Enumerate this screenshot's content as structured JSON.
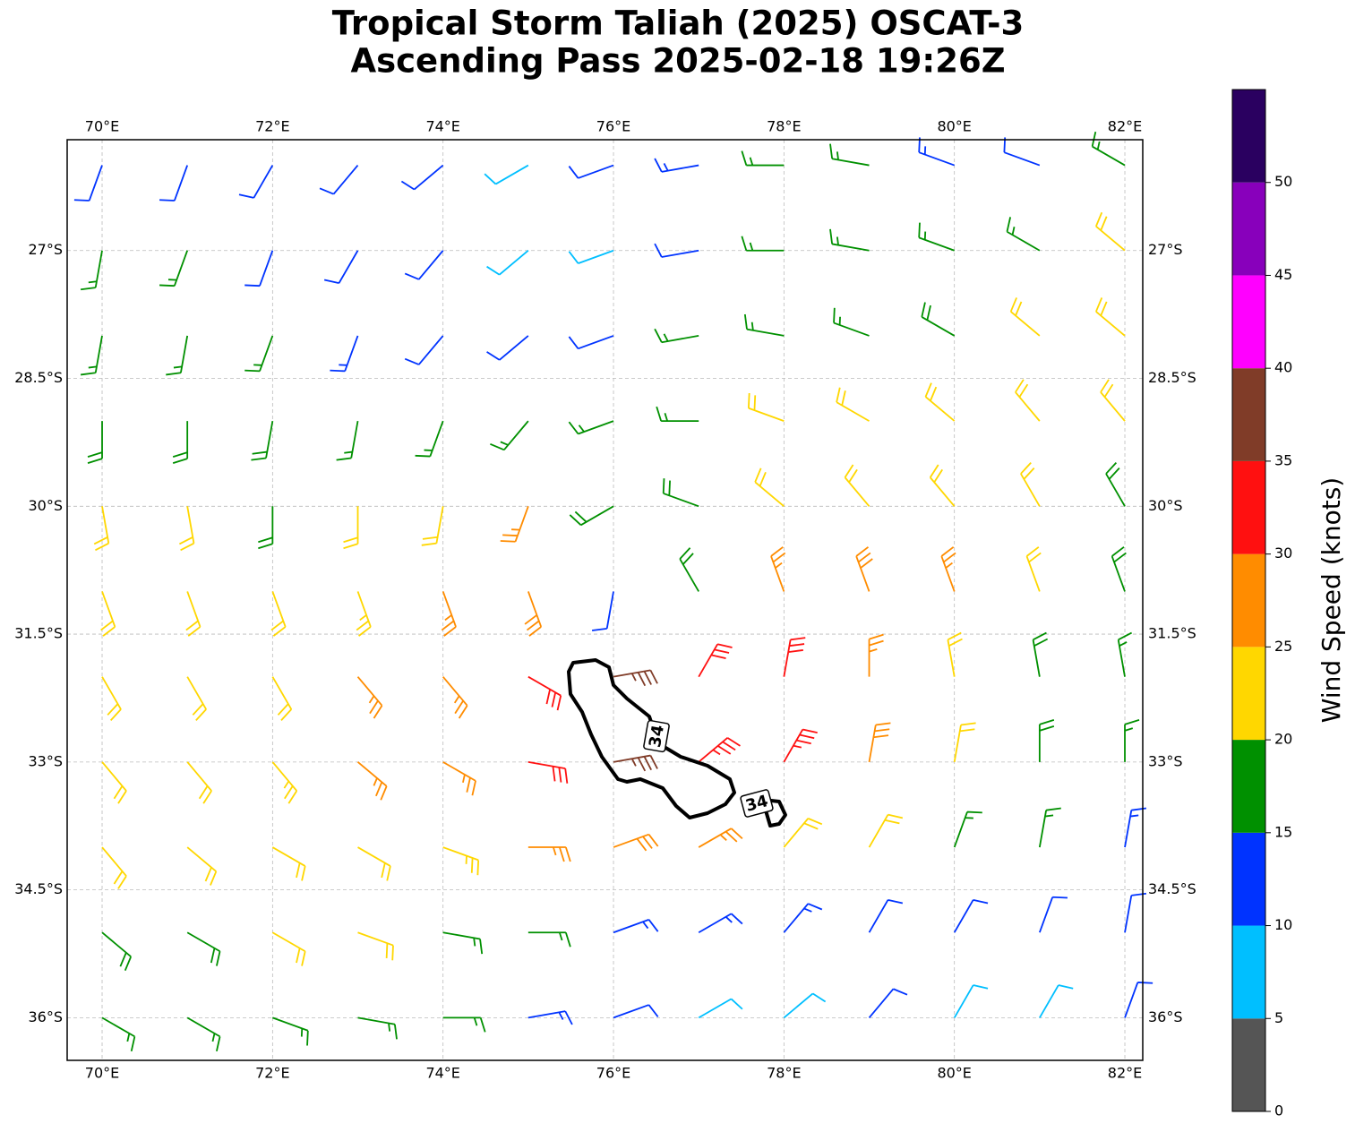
{
  "chart_data": {
    "type": "barbs",
    "title": [
      "Tropical Storm Taliah (2025) OSCAT-3",
      "Ascending Pass 2025-02-18 19:26Z"
    ],
    "xlim": [
      69.59,
      82.21
    ],
    "ylim": [
      -36.5,
      -25.7
    ],
    "xticks": [
      {
        "value": 70,
        "label": "70°E"
      },
      {
        "value": 72,
        "label": "72°E"
      },
      {
        "value": 74,
        "label": "74°E"
      },
      {
        "value": 76,
        "label": "76°E"
      },
      {
        "value": 78,
        "label": "78°E"
      },
      {
        "value": 80,
        "label": "80°E"
      },
      {
        "value": 82,
        "label": "82°E"
      }
    ],
    "yticks": [
      {
        "value": -27,
        "label": "27°S"
      },
      {
        "value": -28.5,
        "label": "28.5°S"
      },
      {
        "value": -30,
        "label": "30°S"
      },
      {
        "value": -31.5,
        "label": "31.5°S"
      },
      {
        "value": -33,
        "label": "33°S"
      },
      {
        "value": -34.5,
        "label": "34.5°S"
      },
      {
        "value": -36,
        "label": "36°S"
      }
    ],
    "grid": true,
    "lons": [
      70,
      71,
      72,
      73,
      74,
      75,
      76,
      77,
      78,
      79,
      80,
      81,
      82
    ],
    "lats": [
      -26,
      -27,
      -28,
      -29,
      -30,
      -31,
      -32,
      -33,
      -34,
      -35,
      -36
    ],
    "speed": [
      [
        12,
        12,
        12,
        10,
        10,
        8,
        10,
        13,
        15,
        15,
        13,
        12,
        17
      ],
      [
        17,
        15,
        12,
        12,
        10,
        8,
        8,
        12,
        15,
        17,
        17,
        15,
        20
      ],
      [
        17,
        17,
        17,
        13,
        12,
        10,
        12,
        15,
        17,
        17,
        18,
        20,
        20
      ],
      [
        18,
        18,
        18,
        17,
        15,
        17,
        17,
        17,
        20,
        20,
        21,
        21,
        22
      ],
      [
        22,
        20,
        18,
        20,
        22,
        25,
        18,
        18,
        22,
        22,
        22,
        20,
        18
      ],
      [
        22,
        22,
        22,
        23,
        25,
        28,
        12,
        18,
        25,
        28,
        25,
        22,
        18
      ],
      [
        22,
        22,
        22,
        25,
        26,
        32,
        36,
        32,
        30,
        27,
        22,
        18,
        17
      ],
      [
        22,
        22,
        24,
        26,
        27,
        30,
        36,
        34,
        33,
        28,
        22,
        18,
        15
      ],
      [
        20,
        22,
        22,
        22,
        23,
        25,
        28,
        26,
        22,
        20,
        17,
        15,
        13
      ],
      [
        18,
        18,
        20,
        20,
        17,
        15,
        13,
        13,
        13,
        12,
        12,
        12,
        12
      ],
      [
        17,
        17,
        17,
        17,
        15,
        13,
        10,
        8,
        8,
        10,
        8,
        8,
        10
      ]
    ],
    "direction": [
      [
        200,
        200,
        210,
        220,
        230,
        240,
        250,
        260,
        270,
        280,
        290,
        290,
        300
      ],
      [
        190,
        200,
        200,
        210,
        220,
        230,
        250,
        260,
        270,
        280,
        290,
        300,
        310
      ],
      [
        190,
        190,
        200,
        200,
        220,
        230,
        250,
        260,
        280,
        290,
        300,
        310,
        310
      ],
      [
        180,
        180,
        190,
        190,
        200,
        220,
        250,
        270,
        290,
        300,
        310,
        320,
        320
      ],
      [
        170,
        170,
        180,
        180,
        190,
        200,
        240,
        290,
        310,
        320,
        320,
        330,
        330
      ],
      [
        160,
        160,
        160,
        160,
        160,
        160,
        190,
        330,
        340,
        340,
        340,
        340,
        340
      ],
      [
        150,
        150,
        150,
        140,
        140,
        120,
        80,
        30,
        10,
        0,
        350,
        350,
        350
      ],
      [
        140,
        140,
        140,
        130,
        120,
        100,
        80,
        50,
        30,
        10,
        10,
        0,
        0
      ],
      [
        140,
        130,
        120,
        120,
        110,
        90,
        70,
        60,
        40,
        30,
        20,
        10,
        10
      ],
      [
        130,
        120,
        120,
        110,
        100,
        90,
        70,
        60,
        40,
        30,
        30,
        20,
        10
      ],
      [
        120,
        120,
        110,
        100,
        90,
        80,
        70,
        60,
        50,
        40,
        30,
        30,
        20
      ]
    ],
    "colorbar": {
      "label": "Wind Speed (knots)",
      "bounds": [
        0,
        5,
        10,
        15,
        20,
        25,
        30,
        35,
        40,
        45,
        50,
        55
      ],
      "colors": [
        "#555555",
        "#00bfff",
        "#0033ff",
        "#009000",
        "#ffd700",
        "#ff8c00",
        "#ff1010",
        "#803c28",
        "#ff00ff",
        "#8800bb",
        "#2a0060"
      ],
      "ticks": [
        0,
        5,
        10,
        15,
        20,
        25,
        30,
        35,
        40,
        45,
        50
      ]
    },
    "contour": {
      "level": 34
    }
  }
}
